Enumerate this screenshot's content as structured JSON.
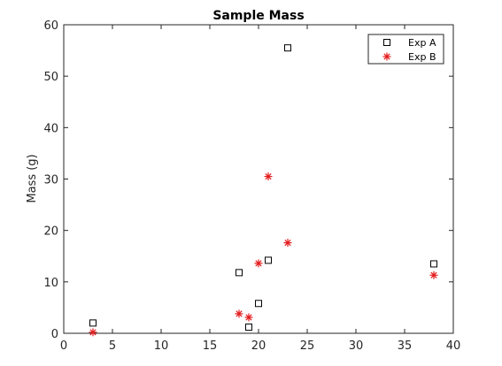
{
  "chart_data": {
    "type": "scatter",
    "title": "Sample Mass",
    "xlabel": "",
    "ylabel": "Mass (g)",
    "xlim": [
      0,
      40
    ],
    "ylim": [
      0,
      60
    ],
    "xticks": [
      0,
      5,
      10,
      15,
      20,
      25,
      30,
      35,
      40
    ],
    "yticks": [
      0,
      10,
      20,
      30,
      40,
      50,
      60
    ],
    "grid": false,
    "legend_position": "top-right",
    "series": [
      {
        "name": "Exp A",
        "marker": "square",
        "color": "#000000",
        "points": [
          {
            "x": 3,
            "y": 2
          },
          {
            "x": 18,
            "y": 11.8
          },
          {
            "x": 19,
            "y": 1.2
          },
          {
            "x": 20,
            "y": 5.8
          },
          {
            "x": 21,
            "y": 14.2
          },
          {
            "x": 23,
            "y": 55.5
          },
          {
            "x": 38,
            "y": 13.5
          }
        ]
      },
      {
        "name": "Exp B",
        "marker": "asterisk",
        "color": "#e31a1c",
        "points": [
          {
            "x": 3,
            "y": 0.2
          },
          {
            "x": 18,
            "y": 3.8
          },
          {
            "x": 19,
            "y": 3.1
          },
          {
            "x": 20,
            "y": 13.6
          },
          {
            "x": 21,
            "y": 30.5
          },
          {
            "x": 23,
            "y": 17.6
          },
          {
            "x": 38,
            "y": 11.3
          }
        ]
      }
    ]
  }
}
